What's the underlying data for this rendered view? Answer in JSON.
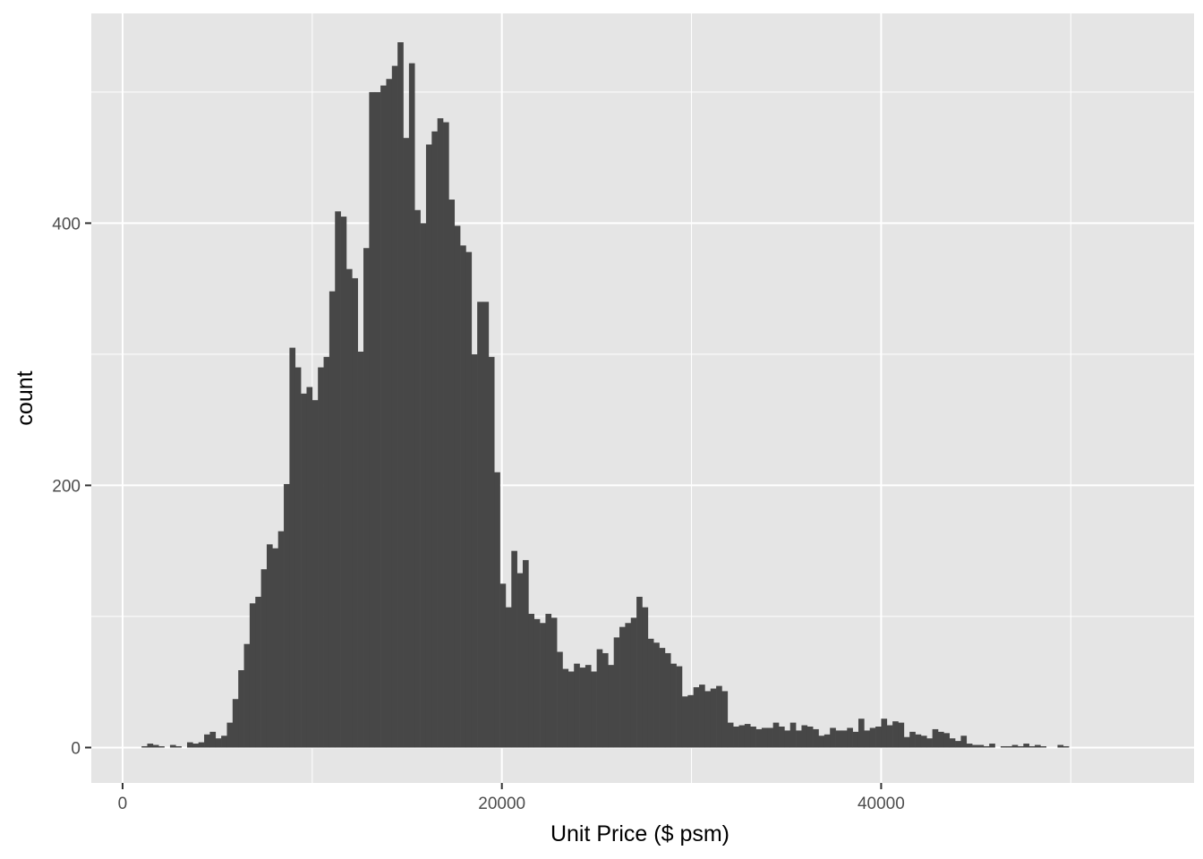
{
  "chart_data": {
    "type": "bar",
    "subtype": "histogram",
    "xlabel": "Unit Price ($ psm)",
    "ylabel": "count",
    "xlim": [
      -1650,
      56500
    ],
    "ylim": [
      -27,
      560
    ],
    "x_ticks": [
      0,
      20000,
      40000
    ],
    "x_tick_labels": [
      "0",
      "20000",
      "40000"
    ],
    "x_minor_ticks": [
      10000,
      30000,
      50000
    ],
    "y_ticks": [
      0,
      200,
      400
    ],
    "y_tick_labels": [
      "0",
      "200",
      "400"
    ],
    "y_minor_ticks": [
      100,
      300,
      500
    ],
    "grid": true,
    "legend": "none",
    "colors": {
      "panel": "#e5e5e5",
      "grid": "#ffffff",
      "bar": "#474747",
      "tick_text": "#4d4d4d",
      "axis_title": "#000000"
    },
    "bin_start": 1000,
    "bin_width": 300,
    "counts": [
      1,
      3,
      2,
      1,
      0,
      2,
      1,
      0,
      4,
      3,
      4,
      10,
      12,
      7,
      9,
      19,
      37,
      59,
      79,
      110,
      115,
      136,
      155,
      152,
      165,
      201,
      305,
      290,
      270,
      275,
      265,
      290,
      298,
      348,
      409,
      405,
      365,
      358,
      302,
      381,
      500,
      500,
      505,
      510,
      520,
      538,
      465,
      522,
      410,
      400,
      460,
      470,
      480,
      477,
      418,
      398,
      383,
      378,
      300,
      340,
      340,
      298,
      210,
      125,
      107,
      150,
      133,
      143,
      102,
      98,
      95,
      102,
      99,
      73,
      60,
      58,
      64,
      61,
      63,
      58,
      75,
      72,
      63,
      84,
      92,
      95,
      99,
      115,
      107,
      83,
      80,
      76,
      72,
      64,
      62,
      39,
      40,
      46,
      48,
      43,
      45,
      47,
      43,
      19,
      16,
      17,
      18,
      16,
      14,
      15,
      15,
      19,
      16,
      13,
      19,
      13,
      17,
      16,
      14,
      9,
      10,
      15,
      13,
      13,
      15,
      12,
      22,
      13,
      15,
      16,
      22,
      17,
      20,
      19,
      8,
      12,
      10,
      9,
      7,
      14,
      12,
      11,
      7,
      5,
      9,
      3,
      2,
      2,
      1,
      3,
      0,
      1,
      1,
      2,
      1,
      3,
      1,
      2,
      1,
      0,
      0,
      2,
      1,
      0,
      0,
      0,
      0,
      0,
      0,
      0,
      0,
      0,
      0,
      0,
      0,
      0,
      0,
      0,
      0,
      0,
      0,
      0,
      0,
      0,
      0,
      0,
      0,
      1,
      2,
      3,
      2,
      1,
      0,
      1,
      0,
      0,
      0,
      0,
      1,
      0,
      0,
      0,
      2,
      2,
      1,
      0,
      0,
      0,
      0,
      0,
      0,
      0,
      0,
      0,
      1,
      0,
      0
    ]
  }
}
